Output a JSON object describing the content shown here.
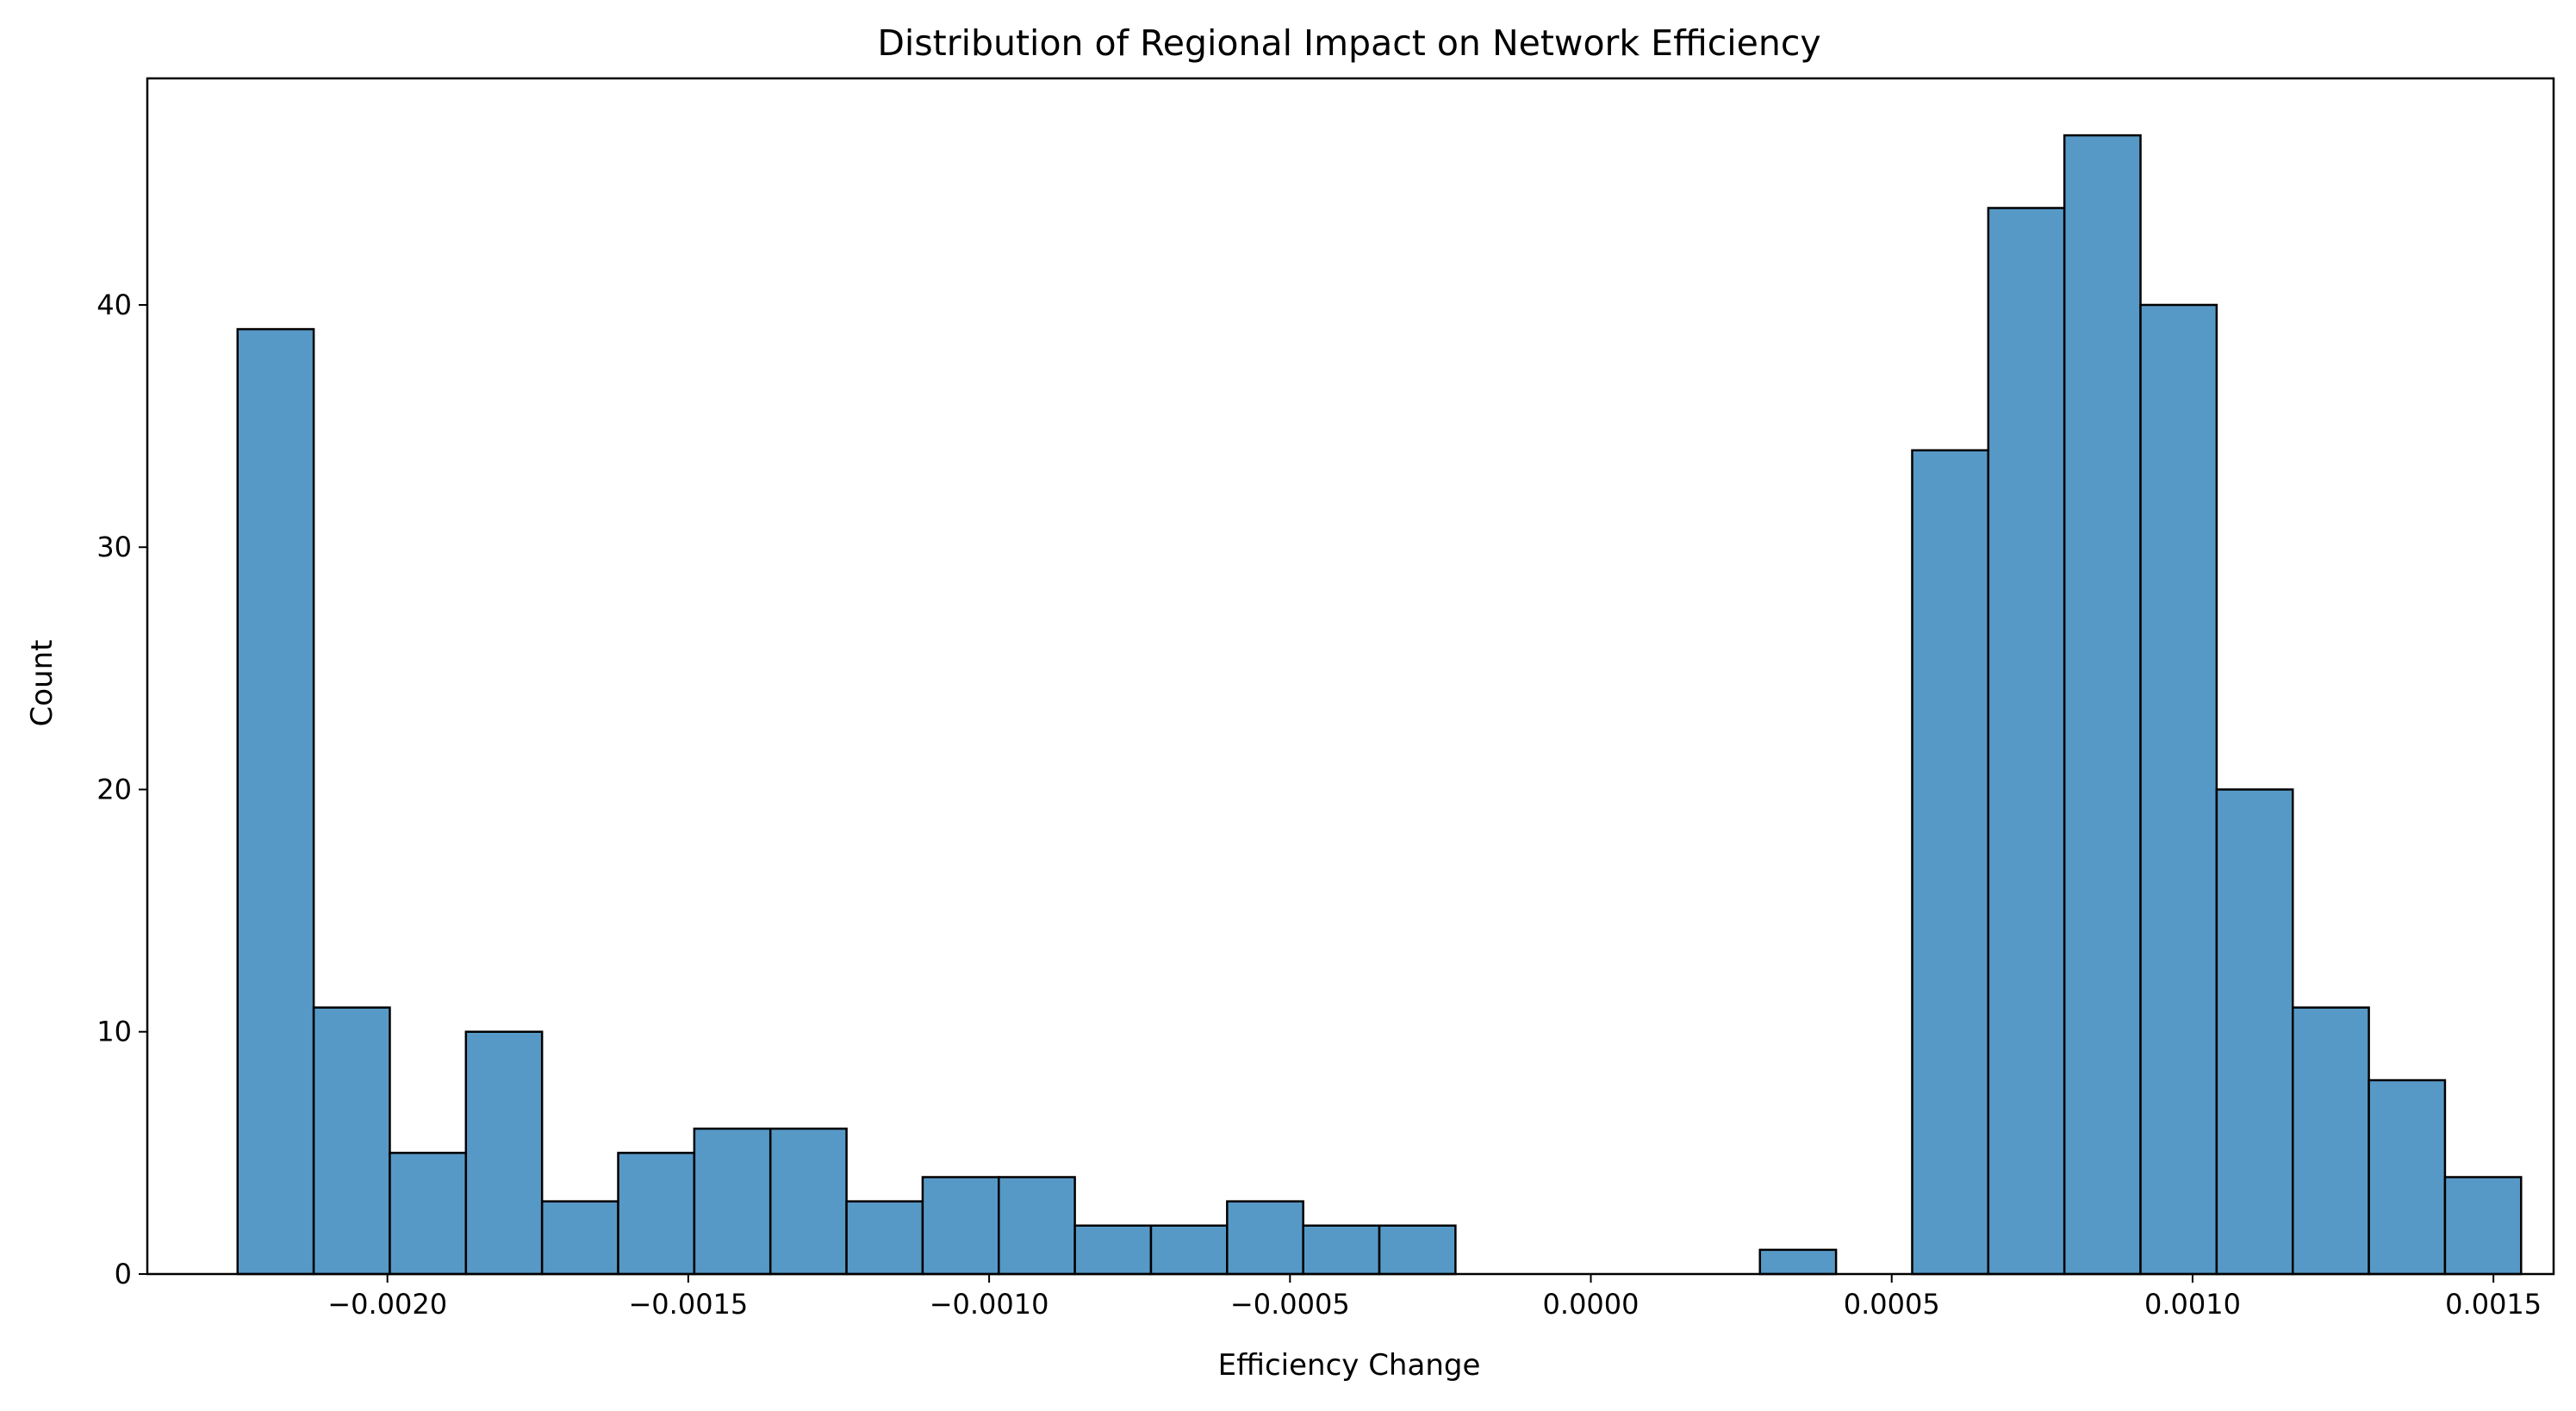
{
  "chart_data": {
    "type": "bar",
    "subtype": "histogram",
    "title": "Distribution of Regional Impact on Network Efficiency",
    "xlabel": "Efficiency Change",
    "ylabel": "Count",
    "xlim": [
      -0.002399,
      0.0016
    ],
    "ylim": [
      0,
      49.35
    ],
    "grid": false,
    "bin_start": -0.002249,
    "bin_width": 0.0001265,
    "counts": [
      39,
      11,
      5,
      10,
      3,
      5,
      6,
      6,
      3,
      4,
      4,
      2,
      2,
      3,
      2,
      2,
      0,
      0,
      0,
      0,
      1,
      0,
      34,
      44,
      47,
      40,
      20,
      11,
      8,
      4
    ],
    "x_ticks": [
      -0.002,
      -0.0015,
      -0.001,
      -0.0005,
      0.0,
      0.0005,
      0.001,
      0.0015
    ],
    "x_tick_labels": [
      "−0.0020",
      "−0.0015",
      "−0.0010",
      "−0.0005",
      "0.0000",
      "0.0005",
      "0.0010",
      "0.0015"
    ],
    "y_ticks": [
      0,
      10,
      20,
      30,
      40
    ],
    "y_tick_labels": [
      "0",
      "10",
      "20",
      "30",
      "40"
    ],
    "colors": {
      "bar_fill": "#5799c6",
      "bar_edge": "#000000",
      "axes": "#000000",
      "background": "#ffffff"
    }
  }
}
